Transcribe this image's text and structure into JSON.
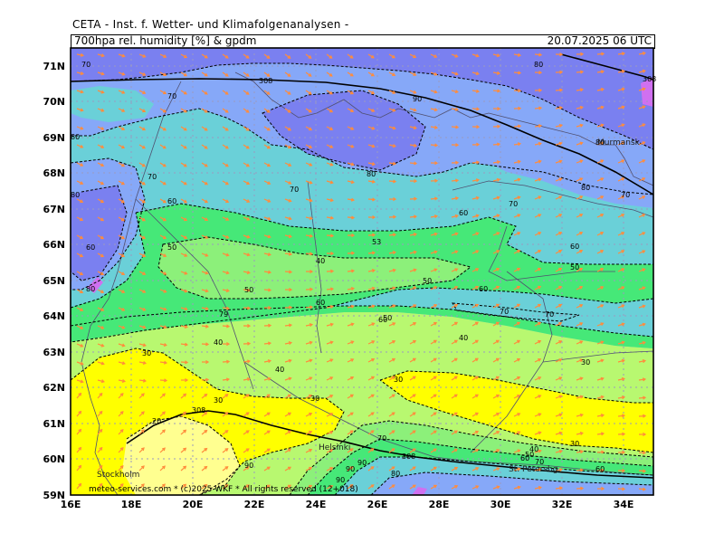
{
  "header": {
    "title": "CETA - Inst. f. Wetter- und Klimafolgenanalysen -",
    "parameter": "700hpa rel. humidity [%] & gpdm",
    "valid_time": "20.07.2025 06 UTC"
  },
  "axes": {
    "lat_labels": [
      "71N",
      "70N",
      "69N",
      "68N",
      "67N",
      "66N",
      "65N",
      "64N",
      "63N",
      "62N",
      "61N",
      "60N",
      "59N"
    ],
    "lon_labels": [
      "16E",
      "18E",
      "20E",
      "22E",
      "24E",
      "26E",
      "28E",
      "30E",
      "32E",
      "34E"
    ]
  },
  "cities": {
    "murmansk": "Murmansk",
    "helsinki": "Helsinki",
    "stockholm": "Stockholm",
    "st_petersburg": "St. Petersbg."
  },
  "contour_labels": {
    "l1": "70",
    "l2": "308",
    "l3": "70",
    "l4": "90",
    "l5": "80",
    "l6": "80",
    "l7": "70",
    "l8": "80",
    "l9": "70",
    "l10": "70",
    "l11": "60",
    "l12": "80",
    "l13": "70",
    "l14": "60",
    "l15": "50",
    "l16": "53",
    "l17": "60",
    "l18": "40",
    "l19": "50",
    "l20": "50",
    "l21": "60",
    "l22": "60",
    "l23": "50",
    "l24": "70",
    "l25": "70",
    "l26": "40",
    "l27": "60",
    "l28": "50",
    "l29": "40",
    "l30": "79",
    "l31": "30",
    "l32": "40",
    "l33": "30",
    "l34": "30",
    "l35": "30",
    "l36": "20",
    "l37": "308",
    "l38": "30",
    "l39": "70",
    "l40": "308",
    "l41": "90",
    "l42": "90",
    "l43": "80",
    "l44": "90",
    "l45": "40",
    "l46": "50",
    "l47": "70",
    "l48": "60",
    "l49": "60",
    "l50": "80",
    "l51": "80",
    "l52": "80",
    "l53": "60",
    "l54": "308",
    "l55": "90",
    "l56": "30"
  },
  "footer": {
    "copyright": "meteo-services.com * (c)2025 WKF * All rights reserved (12+018)"
  },
  "colors": {
    "purple": "#d070f0",
    "blue_violet": "#7a80f0",
    "light_blue": "#86a8f8",
    "cyan": "#6ad0d8",
    "green": "#46e878",
    "light_green": "#8cf07a",
    "yellow_green": "#b8f870",
    "yellow": "#ffff00",
    "pale_yellow": "#ffff90",
    "arrow": "#ff8c3c"
  }
}
